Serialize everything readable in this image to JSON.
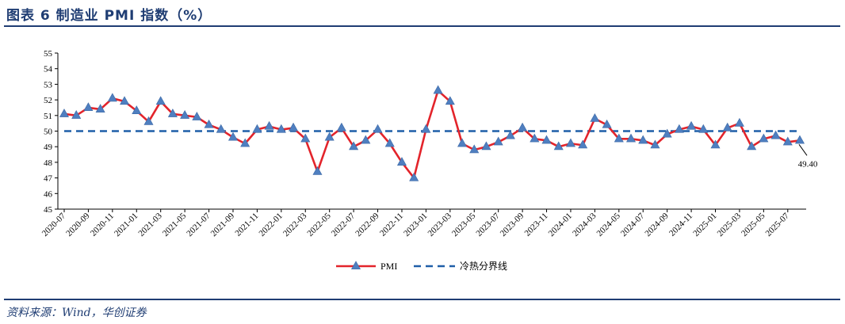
{
  "header": {
    "title": "图表 6   制造业 PMI 指数（%）"
  },
  "footer": {
    "source": "资料来源：Wind，华创证券"
  },
  "chart_data": {
    "type": "line",
    "title": "",
    "xlabel": "",
    "ylabel": "",
    "ylim": [
      45,
      55
    ],
    "yticks": [
      45,
      46,
      47,
      48,
      49,
      50,
      51,
      52,
      53,
      54,
      55
    ],
    "grid": false,
    "legend_position": "bottom-center",
    "x": [
      "2020-07",
      "2020-08",
      "2020-09",
      "2020-10",
      "2020-11",
      "2020-12",
      "2021-01",
      "2021-02",
      "2021-03",
      "2021-04",
      "2021-05",
      "2021-06",
      "2021-07",
      "2021-08",
      "2021-09",
      "2021-10",
      "2021-11",
      "2021-12",
      "2022-01",
      "2022-02",
      "2022-03",
      "2022-04",
      "2022-05",
      "2022-06",
      "2022-07",
      "2022-08",
      "2022-09",
      "2022-10",
      "2022-11",
      "2022-12",
      "2023-01",
      "2023-02",
      "2023-03",
      "2023-04",
      "2023-05",
      "2023-06",
      "2023-07",
      "2023-08",
      "2023-09",
      "2023-10",
      "2023-11",
      "2023-12",
      "2024-01",
      "2024-02",
      "2024-03",
      "2024-04",
      "2024-05",
      "2024-06",
      "2024-07",
      "2024-08",
      "2024-09",
      "2024-10",
      "2024-11",
      "2024-12",
      "2025-01",
      "2025-02",
      "2025-03",
      "2025-04",
      "2025-05",
      "2025-06",
      "2025-07",
      "2025-08"
    ],
    "x_tick_labels": [
      "2020-07",
      "2020-09",
      "2020-11",
      "2021-01",
      "2021-03",
      "2021-05",
      "2021-07",
      "2021-09",
      "2021-11",
      "2022-01",
      "2022-03",
      "2022-05",
      "2022-07",
      "2022-09",
      "2022-11",
      "2023-01",
      "2023-03",
      "2023-05",
      "2023-07",
      "2023-09",
      "2023-11",
      "2024-01",
      "2024-03",
      "2024-05",
      "2024-07",
      "2024-09",
      "2024-11",
      "2025-01",
      "2025-03",
      "2025-05",
      "2025-07"
    ],
    "series": [
      {
        "name": "PMI",
        "color": "#e3242b",
        "marker_color": "#4f7fc0",
        "marker": "triangle",
        "values": [
          51.1,
          51.0,
          51.5,
          51.4,
          52.1,
          51.9,
          51.3,
          50.6,
          51.9,
          51.1,
          51.0,
          50.9,
          50.4,
          50.1,
          49.6,
          49.2,
          50.1,
          50.3,
          50.1,
          50.2,
          49.5,
          47.4,
          49.6,
          50.2,
          49.0,
          49.4,
          50.1,
          49.2,
          48.0,
          47.0,
          50.1,
          52.6,
          51.9,
          49.2,
          48.8,
          49.0,
          49.3,
          49.7,
          50.2,
          49.5,
          49.4,
          49.0,
          49.2,
          49.1,
          50.8,
          50.4,
          49.5,
          49.5,
          49.4,
          49.1,
          49.8,
          50.1,
          50.3,
          50.1,
          49.1,
          50.2,
          50.5,
          49.0,
          49.5,
          49.7,
          49.3,
          49.4
        ]
      },
      {
        "name": "冷热分界线",
        "color": "#1f5fa8",
        "style": "dashed",
        "values": [
          50,
          50,
          50,
          50,
          50,
          50,
          50,
          50,
          50,
          50,
          50,
          50,
          50,
          50,
          50,
          50,
          50,
          50,
          50,
          50,
          50,
          50,
          50,
          50,
          50,
          50,
          50,
          50,
          50,
          50,
          50,
          50,
          50,
          50,
          50,
          50,
          50,
          50,
          50,
          50,
          50,
          50,
          50,
          50,
          50,
          50,
          50,
          50,
          50,
          50,
          50,
          50,
          50,
          50,
          50,
          50,
          50,
          50,
          50,
          50,
          50,
          50
        ]
      }
    ],
    "annotation": {
      "text": "49.40",
      "value": 49.4,
      "index": 61
    }
  }
}
